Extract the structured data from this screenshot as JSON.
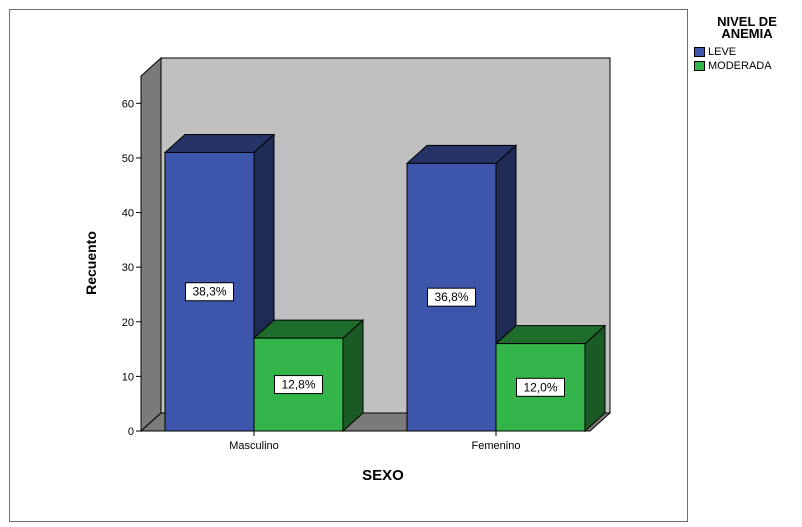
{
  "chart_data": {
    "type": "bar",
    "categories": [
      "Masculino",
      "Femenino"
    ],
    "series": [
      {
        "name": "LEVE",
        "values": [
          51,
          49
        ],
        "labels": [
          "38,3%",
          "36,8%"
        ]
      },
      {
        "name": "MODERADA",
        "values": [
          17,
          16
        ],
        "labels": [
          "12,8%",
          "12,0%"
        ]
      }
    ],
    "xlabel": "SEXO",
    "ylabel": "Recuento",
    "ylim": [
      0,
      65
    ],
    "yticks": [
      0,
      10,
      20,
      30,
      40,
      50,
      60
    ],
    "grid": false,
    "style": "3d",
    "legend": {
      "title_line1": "NIVEL DE",
      "title_line2": "ANEMIA",
      "placement": "right"
    }
  },
  "colors": {
    "leve": "#3d55aa",
    "moderada": "#33b54a",
    "back_wall": "#c0c0c0",
    "side_wall": "#7a7a7a"
  }
}
